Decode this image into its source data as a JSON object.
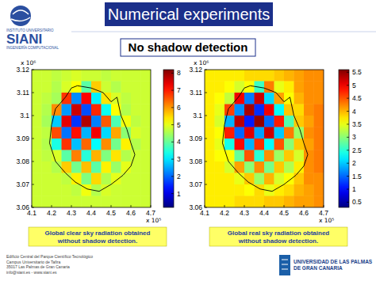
{
  "slide": {
    "title": "Numerical experiments",
    "subtitle": "No shadow detection",
    "logo": {
      "name": "SIANI",
      "line1": "INSTITUTO UNIVERSITARIO",
      "line2": "INGENIERÍA COMPUTACIONAL"
    },
    "footer": [
      "Edificio Central del Parque Científico Tecnológico",
      "Campus Universitario de Tafira",
      "35017 Las Palmas de Gran Canaria",
      "info@siani.es - www.siani.es"
    ],
    "university": [
      "UNIVERSIDAD DE LAS PALMAS",
      "DE GRAN CANARIA"
    ]
  },
  "chart_data": [
    {
      "type": "heatmap",
      "caption": [
        "Global clear sky radiation obtained",
        "without shadow detection."
      ],
      "x_factor": "x 10⁵",
      "y_factor": "x 10⁶",
      "xlim": [
        4.1,
        4.7
      ],
      "ylim": [
        3.06,
        3.12
      ],
      "xticks": [
        4.1,
        4.2,
        4.3,
        4.4,
        4.5,
        4.6,
        4.7
      ],
      "yticks": [
        3.06,
        3.07,
        3.08,
        3.09,
        3.1,
        3.11,
        3.12
      ],
      "x_edges": [
        4.1,
        4.15,
        4.2,
        4.25,
        4.3,
        4.35,
        4.4,
        4.45,
        4.5,
        4.55,
        4.6,
        4.65,
        4.7
      ],
      "y_edges": [
        3.12,
        3.115,
        3.11,
        3.105,
        3.1,
        3.095,
        3.09,
        3.085,
        3.08,
        3.075,
        3.07,
        3.065,
        3.06
      ],
      "cells": [
        [
          4.8,
          4.8,
          4.7,
          4.8,
          4.9,
          4.8,
          4.8,
          4.7,
          4.8,
          4.8,
          4.8,
          4.8
        ],
        [
          4.8,
          4.8,
          4.6,
          4.9,
          5.2,
          3.9,
          5.6,
          4.8,
          4.6,
          4.8,
          4.8,
          4.8
        ],
        [
          4.8,
          4.7,
          4.5,
          6.8,
          2.3,
          7.2,
          3.1,
          5.4,
          4.9,
          4.7,
          4.8,
          4.8
        ],
        [
          4.8,
          4.6,
          6.1,
          2.4,
          7.6,
          1.8,
          6.9,
          3.3,
          5.2,
          4.6,
          4.8,
          4.8
        ],
        [
          4.8,
          4.5,
          2.8,
          7.4,
          1.6,
          7.8,
          2.2,
          6.5,
          3.8,
          5.1,
          4.7,
          4.8
        ],
        [
          4.8,
          4.7,
          6.6,
          2.1,
          7.1,
          2.6,
          7.3,
          2.9,
          5.9,
          4.3,
          4.9,
          4.8
        ],
        [
          4.8,
          4.6,
          3.4,
          6.8,
          2.7,
          6.4,
          3.2,
          6.1,
          4.1,
          5.3,
          4.6,
          4.8
        ],
        [
          4.8,
          4.7,
          4.9,
          3.9,
          6.2,
          3.5,
          5.8,
          4.2,
          5.4,
          4.6,
          4.8,
          4.8
        ],
        [
          4.8,
          4.8,
          4.6,
          5.6,
          4.1,
          5.7,
          3.9,
          5.3,
          4.4,
          5.0,
          4.8,
          4.8
        ],
        [
          4.8,
          4.8,
          4.8,
          4.7,
          5.3,
          4.2,
          5.5,
          4.6,
          5.0,
          4.8,
          4.8,
          4.8
        ],
        [
          4.8,
          4.8,
          4.8,
          4.8,
          4.7,
          5.1,
          4.6,
          4.9,
          4.8,
          4.8,
          4.8,
          4.8
        ],
        [
          4.8,
          4.8,
          4.8,
          4.8,
          4.8,
          4.8,
          4.8,
          4.8,
          4.8,
          4.8,
          4.8,
          4.8
        ]
      ],
      "colorbar": {
        "range": [
          0.2,
          8.2
        ],
        "ticks": [
          1,
          2,
          3,
          4,
          5,
          6,
          7,
          8
        ]
      },
      "outline": {
        "x": [
          4.33,
          4.4,
          4.46,
          4.5,
          4.53,
          4.55,
          4.58,
          4.6,
          4.62,
          4.6,
          4.56,
          4.5,
          4.44,
          4.38,
          4.32,
          4.27,
          4.22,
          4.19,
          4.2,
          4.22,
          4.27,
          4.3
        ],
        "y": [
          3.113,
          3.112,
          3.11,
          3.106,
          3.108,
          3.1,
          3.094,
          3.088,
          3.083,
          3.078,
          3.074,
          3.07,
          3.067,
          3.068,
          3.071,
          3.075,
          3.08,
          3.088,
          3.096,
          3.103,
          3.108,
          3.112
        ]
      }
    },
    {
      "type": "heatmap",
      "caption": [
        "Global real sky radiation obtained",
        "without shadow detection."
      ],
      "x_factor": "x 10⁵",
      "y_factor": "x 10⁶",
      "xlim": [
        4.1,
        4.7
      ],
      "ylim": [
        3.06,
        3.12
      ],
      "xticks": [
        4.1,
        4.2,
        4.3,
        4.4,
        4.5,
        4.6,
        4.7
      ],
      "yticks": [
        3.06,
        3.07,
        3.08,
        3.09,
        3.1,
        3.11,
        3.12
      ],
      "x_edges": [
        4.1,
        4.15,
        4.2,
        4.25,
        4.3,
        4.35,
        4.4,
        4.45,
        4.5,
        4.55,
        4.6,
        4.65,
        4.7
      ],
      "y_edges": [
        3.12,
        3.115,
        3.11,
        3.105,
        3.1,
        3.095,
        3.09,
        3.085,
        3.08,
        3.075,
        3.07,
        3.065,
        3.06
      ],
      "cells": [
        [
          3.7,
          3.7,
          3.7,
          3.7,
          3.8,
          3.8,
          3.8,
          3.9,
          4.0,
          4.1,
          4.2,
          4.2
        ],
        [
          3.7,
          3.7,
          3.6,
          3.4,
          3.6,
          2.6,
          4.3,
          3.5,
          3.7,
          4.1,
          4.2,
          4.2
        ],
        [
          3.7,
          3.6,
          3.3,
          5.0,
          1.6,
          5.2,
          2.1,
          4.1,
          3.6,
          4.0,
          4.2,
          4.2
        ],
        [
          3.7,
          3.5,
          4.6,
          1.7,
          5.4,
          1.2,
          5.0,
          2.3,
          3.9,
          3.8,
          4.2,
          4.3
        ],
        [
          3.7,
          3.4,
          1.9,
          5.3,
          1.1,
          5.5,
          1.5,
          4.8,
          2.7,
          3.9,
          4.1,
          4.3
        ],
        [
          3.7,
          3.6,
          4.8,
          1.5,
          5.1,
          1.8,
          5.2,
          2.0,
          4.3,
          3.1,
          4.2,
          4.3
        ],
        [
          3.7,
          3.5,
          2.4,
          4.9,
          1.9,
          4.7,
          2.3,
          4.5,
          3.0,
          3.9,
          4.1,
          4.3
        ],
        [
          3.7,
          3.6,
          3.6,
          2.8,
          4.5,
          2.5,
          4.2,
          3.1,
          3.9,
          3.4,
          4.2,
          4.3
        ],
        [
          3.7,
          3.7,
          3.4,
          4.1,
          3.0,
          4.2,
          2.9,
          3.9,
          3.2,
          3.7,
          4.2,
          4.3
        ],
        [
          3.7,
          3.7,
          3.7,
          3.5,
          3.9,
          3.1,
          4.0,
          3.4,
          3.6,
          3.9,
          4.2,
          4.2
        ],
        [
          3.7,
          3.7,
          3.7,
          3.7,
          3.6,
          3.8,
          3.5,
          3.7,
          3.8,
          4.0,
          4.1,
          4.2
        ],
        [
          3.7,
          3.7,
          3.7,
          3.8,
          3.8,
          3.8,
          3.9,
          3.9,
          4.0,
          4.1,
          4.1,
          4.2
        ]
      ],
      "colorbar": {
        "range": [
          0.3,
          5.6
        ],
        "ticks": [
          0.5,
          1,
          1.5,
          2,
          2.5,
          3,
          3.5,
          4,
          4.5,
          5,
          5.5
        ]
      },
      "outline": {
        "x": [
          4.33,
          4.4,
          4.46,
          4.5,
          4.53,
          4.55,
          4.58,
          4.6,
          4.62,
          4.6,
          4.56,
          4.5,
          4.44,
          4.38,
          4.32,
          4.27,
          4.22,
          4.19,
          4.2,
          4.22,
          4.27,
          4.3
        ],
        "y": [
          3.113,
          3.112,
          3.11,
          3.106,
          3.108,
          3.1,
          3.094,
          3.088,
          3.083,
          3.078,
          3.074,
          3.07,
          3.067,
          3.068,
          3.071,
          3.075,
          3.08,
          3.088,
          3.096,
          3.103,
          3.108,
          3.112
        ]
      }
    }
  ]
}
